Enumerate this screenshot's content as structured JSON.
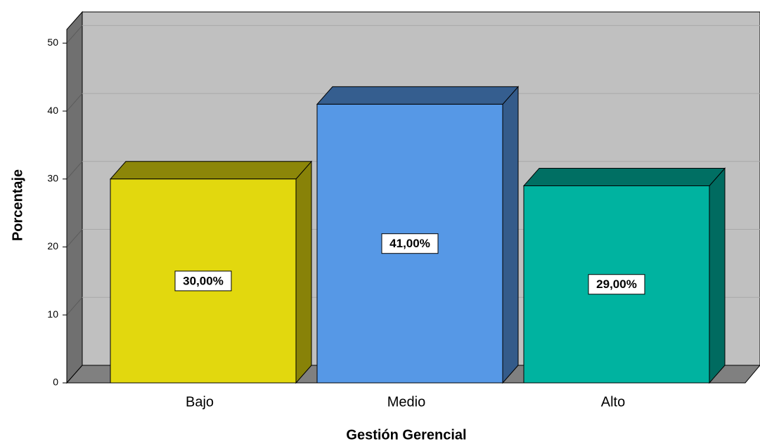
{
  "chart_data": {
    "type": "bar3d",
    "x_label": "Gestión Gerencial",
    "y_label": "Porcentaje",
    "categories": [
      "Bajo",
      "Medio",
      "Alto"
    ],
    "values": [
      30,
      41,
      29
    ],
    "value_labels": [
      "30,00%",
      "41,00%",
      "29,00%"
    ],
    "colors": [
      "#e2d80e",
      "#5698e6",
      "#00b3a0"
    ],
    "ylim": [
      0,
      52
    ],
    "yticks": [
      0,
      10,
      20,
      30,
      40,
      50
    ],
    "grid": true
  }
}
